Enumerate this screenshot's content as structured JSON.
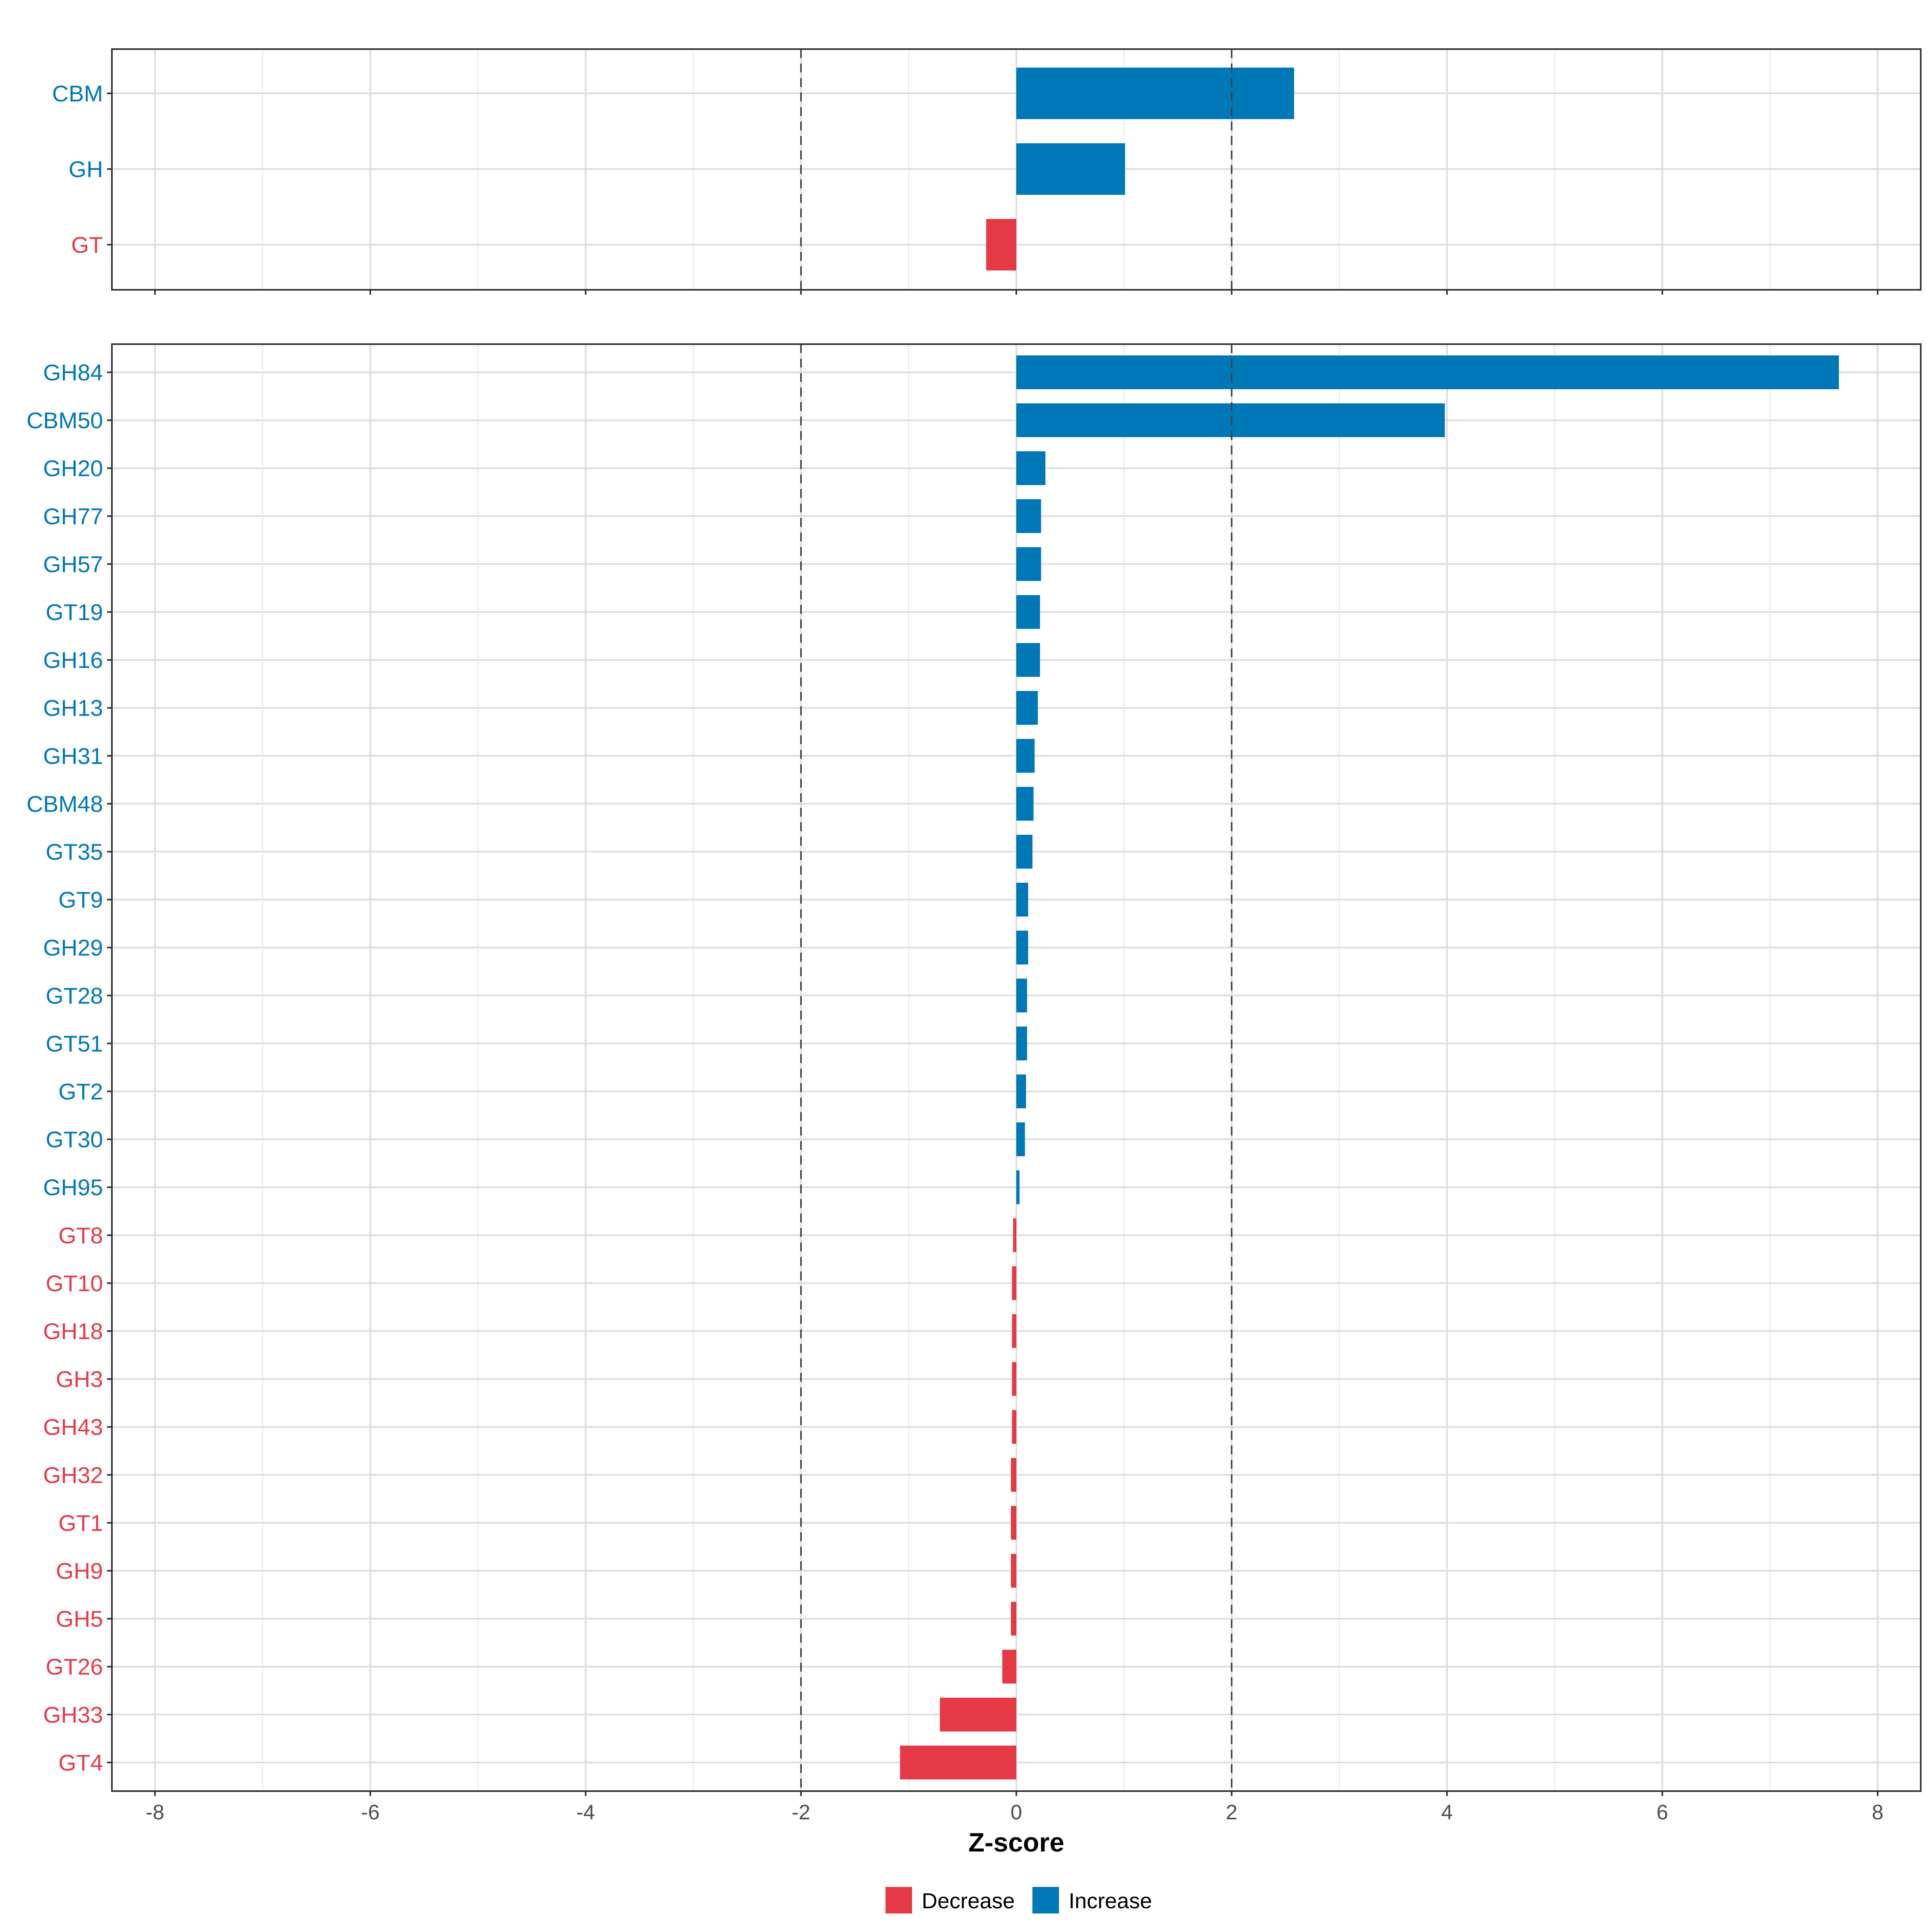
{
  "chart_data": [
    {
      "type": "bar",
      "orientation": "horizontal",
      "panel": "top",
      "categories": [
        "CBM",
        "GH",
        "GT"
      ],
      "values": [
        2.58,
        1.01,
        -0.28
      ],
      "xlim": [
        -8.4,
        8.4
      ],
      "xticks": [
        -8,
        -6,
        -4,
        -2,
        0,
        2,
        4,
        6,
        8
      ],
      "reference_lines": [
        -2,
        2
      ],
      "grid": true
    },
    {
      "type": "bar",
      "orientation": "horizontal",
      "panel": "bottom",
      "categories": [
        "GH84",
        "CBM50",
        "GH20",
        "GH77",
        "GH57",
        "GT19",
        "GH16",
        "GH13",
        "GH31",
        "CBM48",
        "GT35",
        "GT9",
        "GH29",
        "GT28",
        "GT51",
        "GT2",
        "GT30",
        "GH95",
        "GT8",
        "GT10",
        "GH18",
        "GH3",
        "GH43",
        "GH32",
        "GT1",
        "GH9",
        "GH5",
        "GT26",
        "GH33",
        "GT4"
      ],
      "values": [
        7.64,
        3.98,
        0.27,
        0.23,
        0.23,
        0.22,
        0.22,
        0.2,
        0.17,
        0.16,
        0.15,
        0.11,
        0.11,
        0.1,
        0.1,
        0.09,
        0.08,
        0.03,
        -0.03,
        -0.04,
        -0.04,
        -0.04,
        -0.04,
        -0.05,
        -0.05,
        -0.05,
        -0.05,
        -0.13,
        -0.71,
        -1.08
      ],
      "xlabel": "Z-score",
      "xlim": [
        -8.4,
        8.4
      ],
      "xticks": [
        -8,
        -6,
        -4,
        -2,
        0,
        2,
        4,
        6,
        8
      ],
      "reference_lines": [
        -2,
        2
      ],
      "grid": true
    }
  ],
  "legend": {
    "position": "bottom",
    "items": [
      {
        "label": "Decrease",
        "color": "#E63946"
      },
      {
        "label": "Increase",
        "color": "#0077B6"
      }
    ]
  },
  "colors": {
    "increase": "#0077B6",
    "decrease": "#E63946"
  }
}
